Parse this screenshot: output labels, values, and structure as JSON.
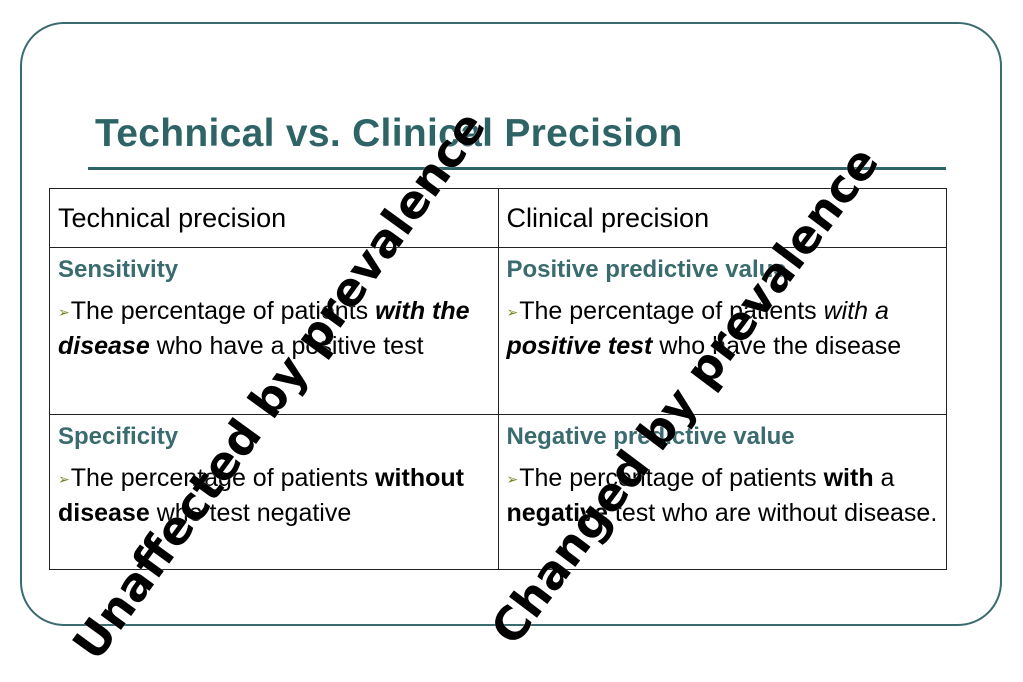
{
  "slide": {
    "title": "Technical vs. Clinical Precision"
  },
  "table": {
    "headers": [
      "Technical precision",
      "Clinical precision"
    ],
    "rows": [
      {
        "left": {
          "heading": "Sensitivity",
          "t1": "The percentage of patients ",
          "t2": "with the ",
          "t3": "disease",
          "t4": " who have a positive test"
        },
        "right": {
          "heading": "Positive predictive value",
          "t1": "The percentage of patients ",
          "t2": "with a ",
          "t3": "positive test",
          "t4": " who have the disease"
        }
      },
      {
        "left": {
          "heading": "Specificity",
          "t1": "The percentage of patients ",
          "t3": "without disease",
          "t4": " who test negative"
        },
        "right": {
          "heading": "Negative predictive value",
          "t1": "The percentage of patients ",
          "t3a": "with",
          "t2": " a ",
          "t3": "negative",
          "t4": " test who are without disease."
        }
      }
    ]
  },
  "stamps": {
    "left": "Unaffected by prevalence",
    "right": "Changed by prevalence"
  },
  "icons": {
    "bullet": "arrow-bullet-icon"
  },
  "colors": {
    "accent": "#2e6466",
    "subheading": "#3a6b6e",
    "bullet": "#6d8a24"
  }
}
